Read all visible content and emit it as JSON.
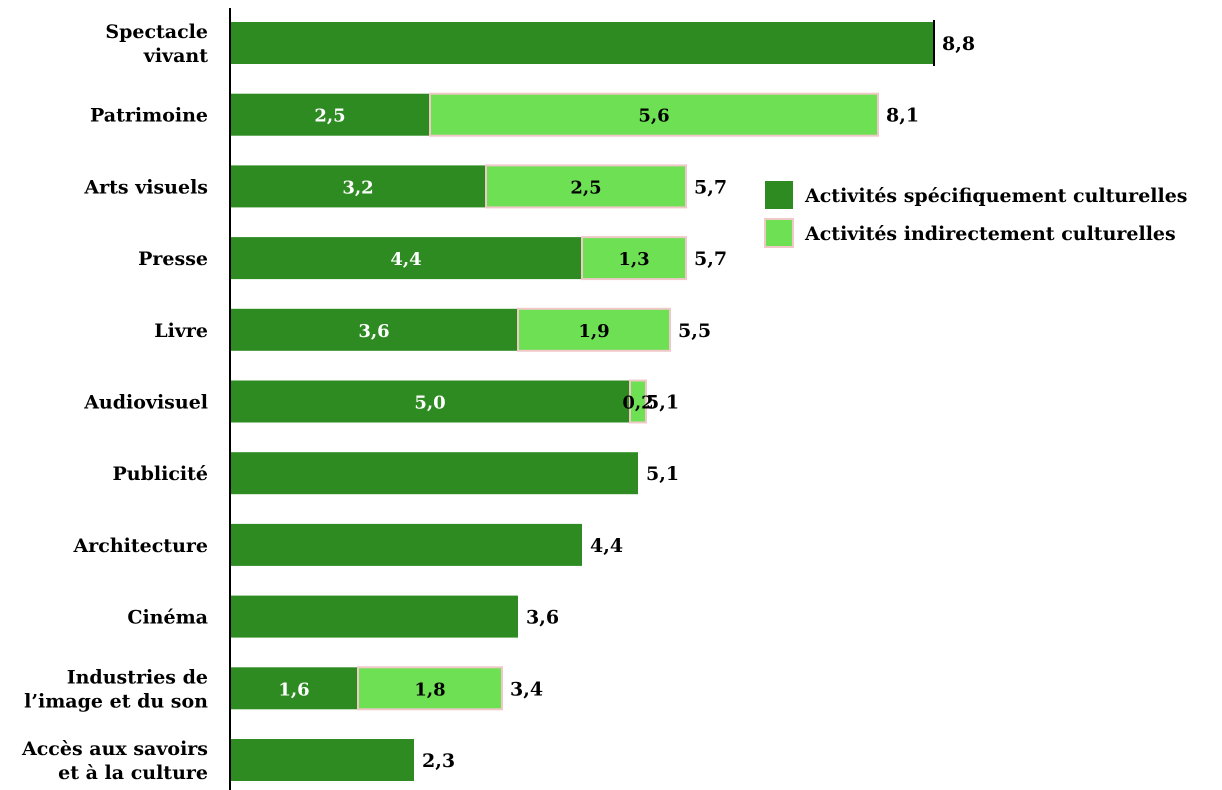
{
  "colors": {
    "specific": "#2e8b22",
    "indirect": "#6ee054",
    "indirect_border": "#f0c8c8",
    "axis": "#000000"
  },
  "legend": {
    "position": "right",
    "items": [
      {
        "key": "specific",
        "label": "Activités spécifiquement culturelles"
      },
      {
        "key": "indirect",
        "label": "Activités indirectement culturelles"
      }
    ]
  },
  "chart_data": {
    "type": "bar",
    "orientation": "horizontal",
    "stacked": true,
    "grid": false,
    "xlim": [
      0,
      10
    ],
    "categories": [
      [
        "Spectacle",
        "vivant"
      ],
      [
        "Patrimoine"
      ],
      [
        "Arts visuels"
      ],
      [
        "Presse"
      ],
      [
        "Livre"
      ],
      [
        "Audiovisuel"
      ],
      [
        "Publicité"
      ],
      [
        "Architecture"
      ],
      [
        "Cinéma"
      ],
      [
        "Industries de",
        "l’image et du son"
      ],
      [
        "Accès aux savoirs",
        "et à la culture"
      ]
    ],
    "series": [
      {
        "name": "Activités spécifiquement culturelles",
        "key": "specific",
        "values": [
          8.8,
          2.5,
          3.2,
          4.4,
          3.6,
          5.0,
          5.1,
          4.4,
          3.6,
          1.6,
          2.3
        ],
        "labels": [
          "",
          "2,5",
          "3,2",
          "4,4",
          "3,6",
          "5,0",
          "",
          "",
          "",
          "1,6",
          ""
        ]
      },
      {
        "name": "Activités indirectement culturelles",
        "key": "indirect",
        "values": [
          0,
          5.6,
          2.5,
          1.3,
          1.9,
          0.2,
          0,
          0,
          0,
          1.8,
          0
        ],
        "labels": [
          "",
          "5,6",
          "2,5",
          "1,3",
          "1,9",
          "0,2",
          "",
          "",
          "",
          "1,8",
          ""
        ]
      }
    ],
    "totals": [
      8.8,
      8.1,
      5.7,
      5.7,
      5.5,
      5.1,
      5.1,
      4.4,
      3.6,
      3.4,
      2.3
    ],
    "total_labels": [
      "8,8",
      "8,1",
      "5,7",
      "5,7",
      "5,5",
      "5,1",
      "5,1",
      "4,4",
      "3,6",
      "3,4",
      "2,3"
    ]
  }
}
